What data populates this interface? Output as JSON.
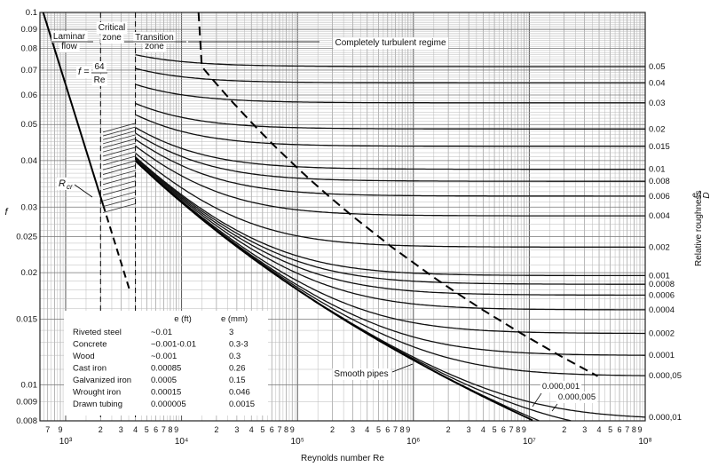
{
  "chart_data": {
    "type": "line",
    "title": "",
    "xlabel": "Reynolds number Re",
    "ylabel": "f",
    "right_axis_label": "Relative roughness",
    "right_axis_fraction": {
      "num": "e",
      "den": "D"
    },
    "xscale": "log",
    "yscale": "log",
    "xlim": [
      600,
      100000000
    ],
    "ylim": [
      0.008,
      0.1
    ],
    "grid": true,
    "x_tick_labels": [
      {
        "v": 700,
        "t": "7"
      },
      {
        "v": 900,
        "t": "9"
      },
      {
        "v": 1000,
        "t": "10³",
        "major": true
      },
      {
        "v": 2000,
        "t": "2"
      },
      {
        "v": 3000,
        "t": "3"
      },
      {
        "v": 4000,
        "t": "4"
      },
      {
        "v": 5000,
        "t": "5"
      },
      {
        "v": 6000,
        "t": "6"
      },
      {
        "v": 7000,
        "t": "7"
      },
      {
        "v": 8000,
        "t": "8"
      },
      {
        "v": 9000,
        "t": "9"
      },
      {
        "v": 10000,
        "t": "10⁴",
        "major": true
      },
      {
        "v": 20000,
        "t": "2"
      },
      {
        "v": 30000,
        "t": "3"
      },
      {
        "v": 40000,
        "t": "4"
      },
      {
        "v": 50000,
        "t": "5"
      },
      {
        "v": 60000,
        "t": "6"
      },
      {
        "v": 70000,
        "t": "7"
      },
      {
        "v": 80000,
        "t": "8"
      },
      {
        "v": 90000,
        "t": "9"
      },
      {
        "v": 100000,
        "t": "10⁵",
        "major": true
      },
      {
        "v": 200000,
        "t": "2"
      },
      {
        "v": 300000,
        "t": "3"
      },
      {
        "v": 400000,
        "t": "4"
      },
      {
        "v": 500000,
        "t": "5"
      },
      {
        "v": 600000,
        "t": "6"
      },
      {
        "v": 700000,
        "t": "7"
      },
      {
        "v": 800000,
        "t": "8"
      },
      {
        "v": 900000,
        "t": "9"
      },
      {
        "v": 1000000,
        "t": "10⁶",
        "major": true
      },
      {
        "v": 2000000,
        "t": "2"
      },
      {
        "v": 3000000,
        "t": "3"
      },
      {
        "v": 4000000,
        "t": "4"
      },
      {
        "v": 5000000,
        "t": "5"
      },
      {
        "v": 6000000,
        "t": "6"
      },
      {
        "v": 7000000,
        "t": "7"
      },
      {
        "v": 8000000,
        "t": "8"
      },
      {
        "v": 9000000,
        "t": "9"
      },
      {
        "v": 10000000,
        "t": "10⁷",
        "major": true
      },
      {
        "v": 20000000,
        "t": "2"
      },
      {
        "v": 30000000,
        "t": "3"
      },
      {
        "v": 40000000,
        "t": "4"
      },
      {
        "v": 50000000,
        "t": "5"
      },
      {
        "v": 60000000,
        "t": "6"
      },
      {
        "v": 70000000,
        "t": "7"
      },
      {
        "v": 80000000,
        "t": "8"
      },
      {
        "v": 90000000,
        "t": "9"
      },
      {
        "v": 100000000,
        "t": "10⁸",
        "major": true
      }
    ],
    "y_tick_labels": [
      {
        "v": 0.1,
        "t": "0.1"
      },
      {
        "v": 0.09,
        "t": "0.09"
      },
      {
        "v": 0.08,
        "t": "0.08"
      },
      {
        "v": 0.07,
        "t": "0.07"
      },
      {
        "v": 0.06,
        "t": "0.06"
      },
      {
        "v": 0.05,
        "t": "0.05"
      },
      {
        "v": 0.04,
        "t": "0.04"
      },
      {
        "v": 0.03,
        "t": "0.03"
      },
      {
        "v": 0.025,
        "t": "0.025"
      },
      {
        "v": 0.02,
        "t": "0.02"
      },
      {
        "v": 0.015,
        "t": "0.015"
      },
      {
        "v": 0.01,
        "t": "0.01"
      },
      {
        "v": 0.009,
        "t": "0.009"
      },
      {
        "v": 0.008,
        "t": "0.008"
      }
    ],
    "roughness_curves": [
      {
        "label": "0.05",
        "value": 0.05
      },
      {
        "label": "0.04",
        "value": 0.04
      },
      {
        "label": "0.03",
        "value": 0.03
      },
      {
        "label": "0.02",
        "value": 0.02
      },
      {
        "label": "0.015",
        "value": 0.015
      },
      {
        "label": "0.01",
        "value": 0.01
      },
      {
        "label": "0.008",
        "value": 0.008
      },
      {
        "label": "0.006",
        "value": 0.006
      },
      {
        "label": "0.004",
        "value": 0.004
      },
      {
        "label": "0.002",
        "value": 0.002
      },
      {
        "label": "0.001",
        "value": 0.001
      },
      {
        "label": "0.0008",
        "value": 0.0008
      },
      {
        "label": "0.0006",
        "value": 0.0006
      },
      {
        "label": "0.0004",
        "value": 0.0004
      },
      {
        "label": "0.0002",
        "value": 0.0002
      },
      {
        "label": "0.0001",
        "value": 0.0001
      },
      {
        "label": "0.000,05",
        "value": 5e-05
      },
      {
        "label": "0.000,01",
        "value": 1e-05
      },
      {
        "label": "0.000,005",
        "value": 5e-06
      },
      {
        "label": "0.000,001",
        "value": 1e-06
      }
    ],
    "zones": {
      "laminar": "Laminar flow",
      "critical": "Critical zone",
      "transition": "Transition zone",
      "turbulent": "Completely turbulent regime"
    },
    "annotations": {
      "laminar_eq_lhs": "f =",
      "laminar_eq_num": "64",
      "laminar_eq_den": "Re",
      "rcr_base": "R",
      "rcr_sub": "cr",
      "smooth_pipes": "Smooth pipes"
    },
    "materials_table": {
      "header_ft": "e (ft)",
      "header_mm": "e (mm)",
      "rows": [
        {
          "name": "Riveted steel",
          "ft": "~0.01",
          "mm": "3"
        },
        {
          "name": "Concrete",
          "ft": "~0.001-0.01",
          "mm": "0.3-3"
        },
        {
          "name": "Wood",
          "ft": "~0.001",
          "mm": "0.3"
        },
        {
          "name": "Cast iron",
          "ft": "0.00085",
          "mm": "0.26"
        },
        {
          "name": "Galvanized iron",
          "ft": "0.0005",
          "mm": "0.15"
        },
        {
          "name": "Wrought iron",
          "ft": "0.00015",
          "mm": "0.046"
        },
        {
          "name": "Drawn tubing",
          "ft": "0.000005",
          "mm": "0.0015"
        }
      ]
    }
  }
}
